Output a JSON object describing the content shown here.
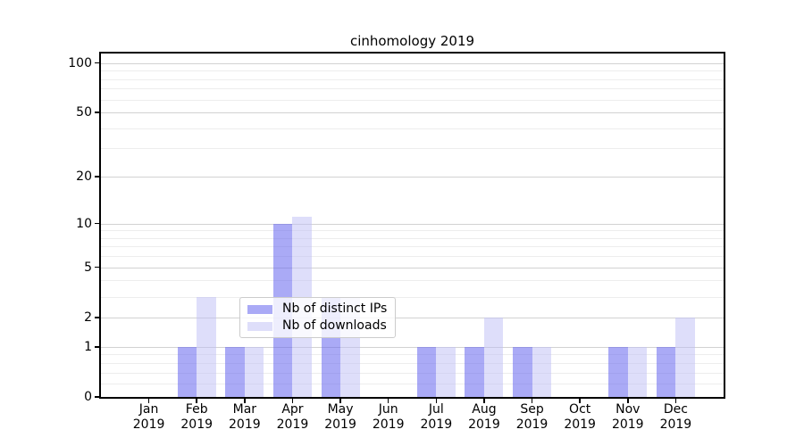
{
  "colors": {
    "distinct_ips": "rgba(100,100,239,0.55)",
    "downloads": "rgba(189,189,245,0.5)",
    "gridline_major": "#d2d2d2",
    "gridline_minor": "#ededed",
    "axis": "#000000",
    "legend_border": "#cccccc"
  },
  "chart_data": {
    "type": "bar",
    "title": "cinhomology 2019",
    "categories": [
      "Jan 2019",
      "Feb 2019",
      "Mar 2019",
      "Apr 2019",
      "May 2019",
      "Jun 2019",
      "Jul 2019",
      "Aug 2019",
      "Sep 2019",
      "Oct 2019",
      "Nov 2019",
      "Dec 2019"
    ],
    "series": [
      {
        "name": "Nb of distinct IPs",
        "color_key": "distinct_ips",
        "values": [
          0,
          1,
          1,
          10,
          3,
          0,
          1,
          1,
          1,
          0,
          1,
          1
        ]
      },
      {
        "name": "Nb of downloads",
        "color_key": "downloads",
        "values": [
          0,
          3,
          1,
          11,
          3,
          0,
          1,
          2,
          1,
          0,
          1,
          2
        ]
      }
    ],
    "xlabel": "",
    "ylabel": "",
    "yscale": "log1p",
    "y_major_ticks": [
      0,
      1,
      2,
      5,
      10,
      20,
      50,
      100
    ],
    "y_minor_ticks": [
      0.2,
      0.4,
      0.6,
      0.8,
      3,
      4,
      6,
      7,
      8,
      9,
      30,
      40,
      60,
      70,
      80,
      90
    ],
    "ylim": [
      0,
      114
    ],
    "grid": true,
    "legend_position": "lower-center-inside"
  }
}
